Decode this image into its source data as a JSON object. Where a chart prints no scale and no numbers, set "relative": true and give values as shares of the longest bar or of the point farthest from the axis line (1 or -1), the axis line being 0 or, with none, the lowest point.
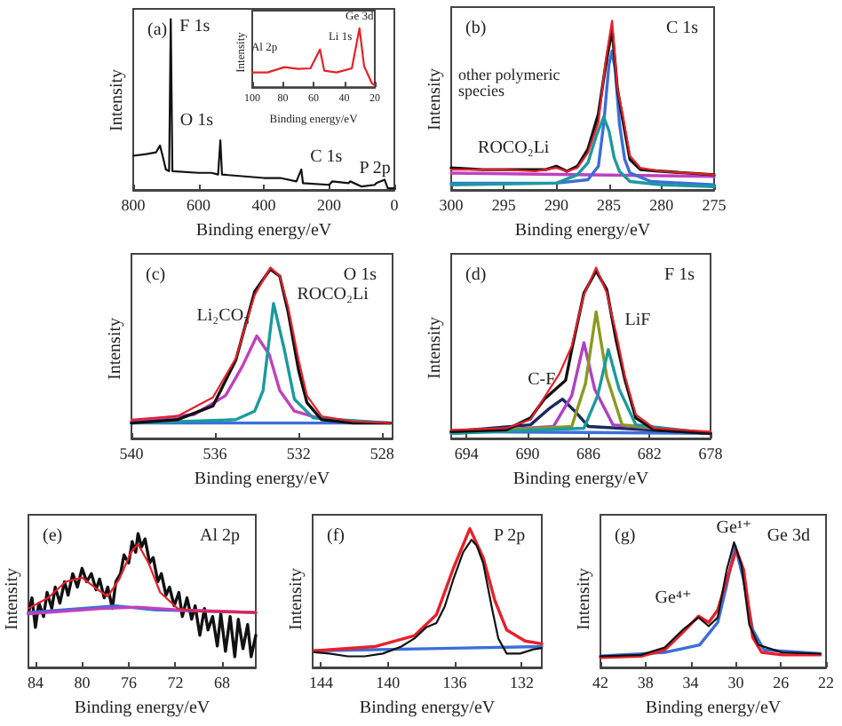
{
  "chart_data": [
    {
      "type": "line",
      "title": "(a)",
      "xlabel": "Binding energy/eV",
      "ylabel": "Intensity",
      "relative": true,
      "marker": "none",
      "xlim": [
        800,
        0
      ],
      "xticks": [
        800,
        600,
        400,
        200,
        0
      ],
      "series": [
        {
          "color": "#111111",
          "x": [
            800,
            760,
            730,
            718,
            710,
            700,
            690,
            685,
            680,
            600,
            560,
            540,
            533,
            528,
            400,
            350,
            300,
            285,
            280,
            200,
            190,
            140,
            135,
            100,
            60,
            55,
            30,
            20,
            0
          ],
          "values": [
            0.2,
            0.21,
            0.22,
            0.26,
            0.2,
            0.12,
            0.11,
            1,
            0.11,
            0.1,
            0.1,
            0.09,
            0.29,
            0.09,
            0.07,
            0.07,
            0.05,
            0.12,
            0.04,
            0.03,
            0.05,
            0.04,
            0.05,
            0.02,
            0.03,
            0.04,
            0.06,
            0.01,
            0.01
          ]
        }
      ],
      "annotations": [
        {
          "text": "F 1s",
          "x": 685,
          "y": 1
        },
        {
          "text": "O 1s",
          "x": 533,
          "y": 0.29
        },
        {
          "text": "C 1s",
          "x": 285,
          "y": 0.12
        },
        {
          "text": "P 2p",
          "x": 135,
          "y": 0.05
        }
      ]
    },
    {
      "type": "line",
      "xlabel": "Binding energy/eV",
      "ylabel": "Intensity",
      "relative": true,
      "marker": "none",
      "xlim": [
        100,
        20
      ],
      "xticks": [
        100,
        80,
        60,
        40,
        20
      ],
      "series": [
        {
          "color": "#e8202a",
          "x": [
            100,
            90,
            79,
            70,
            62,
            55.8,
            53,
            45,
            35,
            30,
            27,
            22,
            20
          ],
          "values": [
            0.25,
            0.25,
            0.34,
            0.31,
            0.32,
            0.64,
            0.28,
            0.25,
            0.32,
            1,
            0.36,
            0.07,
            0.03
          ]
        }
      ],
      "annotations": [
        {
          "text": "Al 2p",
          "x": 79,
          "y": 0.34
        },
        {
          "text": "Li 1s",
          "x": 56,
          "y": 0.64
        },
        {
          "text": "Ge 3d",
          "x": 30,
          "y": 1
        }
      ]
    },
    {
      "type": "line",
      "title": "(b)",
      "subtitle": "C 1s",
      "xlabel": "Binding energy/eV",
      "ylabel": "Intensity",
      "relative": true,
      "marker": "none",
      "xlim": [
        300,
        275
      ],
      "xticks": [
        300,
        295,
        290,
        285,
        280,
        275
      ],
      "series": [
        {
          "color": "#c040c0",
          "x": [
            300,
            275
          ],
          "values": [
            0.1,
            0.08
          ]
        },
        {
          "color": "#3a6fd8",
          "x": [
            300,
            290,
            287,
            286,
            285.5,
            285,
            284.7,
            284.4,
            284,
            283.5,
            283,
            281,
            275
          ],
          "values": [
            0.04,
            0.04,
            0.06,
            0.14,
            0.39,
            0.74,
            0.82,
            0.71,
            0.39,
            0.18,
            0.1,
            0.05,
            0.03
          ]
        },
        {
          "color": "#1a9aa0",
          "x": [
            300,
            290,
            288,
            287,
            286.2,
            285.5,
            285,
            284.5,
            284,
            283,
            280,
            275
          ],
          "values": [
            0.03,
            0.04,
            0.09,
            0.16,
            0.32,
            0.43,
            0.35,
            0.19,
            0.11,
            0.05,
            0.03,
            0.02
          ]
        },
        {
          "color": "#111111",
          "x": [
            300,
            297,
            294,
            291,
            290,
            289,
            288,
            287,
            286,
            285.3,
            284.7,
            284.2,
            283.7,
            283,
            282,
            280,
            275
          ],
          "values": [
            0.13,
            0.12,
            0.12,
            0.12,
            0.14,
            0.11,
            0.14,
            0.24,
            0.45,
            0.74,
            0.95,
            0.6,
            0.42,
            0.18,
            0.12,
            0.11,
            0.09
          ]
        },
        {
          "color": "#e8202a",
          "x": [
            300,
            295,
            292,
            290,
            289,
            288,
            287,
            286,
            285.3,
            284.7,
            284.2,
            283.7,
            283,
            282,
            280,
            275
          ],
          "values": [
            0.12,
            0.12,
            0.11,
            0.13,
            0.11,
            0.13,
            0.22,
            0.4,
            0.77,
            1,
            0.6,
            0.45,
            0.2,
            0.13,
            0.11,
            0.09
          ]
        }
      ],
      "annotations": [
        "other polymeric species",
        {
          "text": "ROCO₂Li",
          "x": 290,
          "y": 0.13
        }
      ]
    },
    {
      "type": "line",
      "title": "(c)",
      "subtitle": "O 1s",
      "xlabel": "Binding energy/eV",
      "ylabel": "Intensity",
      "relative": true,
      "marker": "none",
      "xlim": [
        540,
        527.5
      ],
      "xticks": [
        540,
        536,
        532,
        528
      ],
      "series": [
        {
          "color": "#3a6fd8",
          "x": [
            540,
            527.6
          ],
          "values": [
            0.09,
            0.09
          ]
        },
        {
          "color": "#c040c0",
          "x": [
            540,
            537,
            535.5,
            534.7,
            534,
            533.4,
            532.9,
            532.2,
            530.8,
            527.6
          ],
          "values": [
            0.1,
            0.14,
            0.25,
            0.42,
            0.6,
            0.49,
            0.28,
            0.16,
            0.11,
            0.09
          ]
        },
        {
          "color": "#1a9aa0",
          "x": [
            540,
            535,
            534.1,
            533.7,
            533.2,
            532.7,
            532.2,
            531.3,
            527.6
          ],
          "values": [
            0.09,
            0.11,
            0.16,
            0.28,
            0.79,
            0.53,
            0.23,
            0.12,
            0.09
          ]
        },
        {
          "color": "#111111",
          "x": [
            540,
            537.8,
            536.1,
            535,
            534.1,
            533.35,
            532.9,
            532.5,
            532,
            531.6,
            530.9,
            529.4,
            527.6
          ],
          "values": [
            0.09,
            0.11,
            0.19,
            0.46,
            0.86,
            0.99,
            0.95,
            0.74,
            0.4,
            0.21,
            0.11,
            0.09,
            0.09
          ]
        },
        {
          "color": "#e8202a",
          "x": [
            540,
            537.8,
            536.1,
            535,
            534.1,
            533.35,
            532.9,
            532.5,
            532,
            531.6,
            530.9,
            529.4,
            527.6
          ],
          "values": [
            0.11,
            0.13,
            0.24,
            0.47,
            0.84,
            1,
            0.95,
            0.77,
            0.46,
            0.25,
            0.13,
            0.1,
            0.09
          ]
        }
      ],
      "annotations": [
        {
          "text": "Li₂CO₃",
          "x": 534,
          "y": 0.6
        },
        {
          "text": "ROCO₂Li",
          "x": 532.5,
          "y": 0.77
        }
      ]
    },
    {
      "type": "line",
      "title": "(d)",
      "subtitle": "F 1s",
      "xlabel": "Binding energy/eV",
      "ylabel": "Intensity",
      "relative": true,
      "marker": "none",
      "xlim": [
        695,
        678
      ],
      "xticks": [
        694,
        690,
        686,
        682,
        678
      ],
      "series": [
        {
          "color": "#3a6fd8",
          "x": [
            695,
            678
          ],
          "values": [
            0.04,
            0.03
          ]
        },
        {
          "color": "#1a2a60",
          "x": [
            695,
            689.8,
            688.5,
            687.7,
            686.9,
            686,
            678
          ],
          "values": [
            0.04,
            0.08,
            0.18,
            0.23,
            0.16,
            0.07,
            0.03
          ]
        },
        {
          "color": "#b040c0",
          "x": [
            695,
            688.3,
            687.1,
            686.3,
            685.6,
            684.4,
            678
          ],
          "values": [
            0.03,
            0.07,
            0.25,
            0.56,
            0.29,
            0.08,
            0.03
          ]
        },
        {
          "color": "#8a9a20",
          "x": [
            695,
            687.1,
            686.2,
            685.5,
            684.8,
            683.8,
            678
          ],
          "values": [
            0.03,
            0.07,
            0.32,
            0.74,
            0.36,
            0.08,
            0.03
          ]
        },
        {
          "color": "#1a9aa0",
          "x": [
            695,
            686.3,
            685.4,
            684.7,
            684,
            682.9,
            678
          ],
          "values": [
            0.03,
            0.06,
            0.25,
            0.52,
            0.29,
            0.08,
            0.03
          ]
        },
        {
          "color": "#111111",
          "x": [
            695,
            691.4,
            689.8,
            688.9,
            687.5,
            687.1,
            686.3,
            685.5,
            684.8,
            684.2,
            683.6,
            682.9,
            681.7,
            678
          ],
          "values": [
            0.04,
            0.05,
            0.12,
            0.23,
            0.34,
            0.52,
            0.85,
            0.98,
            0.87,
            0.58,
            0.34,
            0.12,
            0.05,
            0.03
          ]
        },
        {
          "color": "#e8202a",
          "x": [
            695,
            691.4,
            689.8,
            688.9,
            687.9,
            687.1,
            686.3,
            685.5,
            684.8,
            684.2,
            683.6,
            682.9,
            681.7,
            678
          ],
          "values": [
            0.05,
            0.06,
            0.11,
            0.24,
            0.38,
            0.54,
            0.84,
            1,
            0.85,
            0.62,
            0.36,
            0.14,
            0.06,
            0.04
          ]
        }
      ],
      "annotations": [
        {
          "text": "C-F",
          "x": 687.7,
          "y": 0.23
        },
        {
          "text": "LiF",
          "x": 684.2,
          "y": 0.62
        }
      ]
    },
    {
      "type": "line",
      "title": "(e)",
      "subtitle": "Al 2p",
      "xlabel": "Binding energy/eV",
      "ylabel": "Intensity",
      "relative": true,
      "marker": "none",
      "xlim": [
        84.6,
        65.1
      ],
      "xticks": [
        84,
        80,
        76,
        72,
        68
      ],
      "series": [
        {
          "color": "#111111",
          "x": [
            84.6,
            84.3,
            84.0,
            83.7,
            83.3,
            83.0,
            82.6,
            82.3,
            81.9,
            81.5,
            81.2,
            80.8,
            80.4,
            80.0,
            79.6,
            79.2,
            78.8,
            78.5,
            78.1,
            77.8,
            77.4,
            77.1,
            76.7,
            76.4,
            76.0,
            75.7,
            75.4,
            75.2,
            74.9,
            74.6,
            74.2,
            73.9,
            73.5,
            73.2,
            72.8,
            72.5,
            72.1,
            71.7,
            71.4,
            71.0,
            70.6,
            70.3,
            69.9,
            69.5,
            69.2,
            68.8,
            68.4,
            68.1,
            67.7,
            67.3,
            66.9,
            66.6,
            66.2,
            65.8,
            65.5,
            65.1
          ],
          "values": [
            0.4,
            0.52,
            0.3,
            0.48,
            0.38,
            0.56,
            0.44,
            0.6,
            0.48,
            0.64,
            0.54,
            0.7,
            0.6,
            0.74,
            0.64,
            0.7,
            0.58,
            0.66,
            0.52,
            0.6,
            0.44,
            0.64,
            0.7,
            0.84,
            0.78,
            0.94,
            0.86,
            1,
            0.9,
            0.96,
            0.78,
            0.82,
            0.64,
            0.7,
            0.54,
            0.6,
            0.46,
            0.56,
            0.38,
            0.52,
            0.36,
            0.46,
            0.24,
            0.44,
            0.28,
            0.38,
            0.16,
            0.4,
            0.12,
            0.38,
            0.08,
            0.36,
            0.14,
            0.32,
            0.08,
            0.24
          ]
        },
        {
          "color": "#3a6fd8",
          "x": [
            84.6,
            77.1,
            73.8,
            65.1
          ],
          "values": [
            0.41,
            0.46,
            0.43,
            0.41
          ]
        },
        {
          "color": "#c040c0",
          "x": [
            84.6,
            78.3,
            75.3,
            71.8,
            65.1
          ],
          "values": [
            0.4,
            0.44,
            0.45,
            0.43,
            0.41
          ]
        },
        {
          "color": "#e8202a",
          "x": [
            84.6,
            82.9,
            81.4,
            80,
            78.8,
            77.8,
            76.8,
            75.8,
            75.2,
            74.3,
            73.3,
            71.8,
            70.3,
            65.1
          ],
          "values": [
            0.44,
            0.52,
            0.64,
            0.67,
            0.59,
            0.53,
            0.66,
            0.86,
            0.92,
            0.78,
            0.56,
            0.44,
            0.42,
            0.41
          ]
        }
      ]
    },
    {
      "type": "line",
      "title": "(f)",
      "subtitle": "P 2p",
      "xlabel": "Binding energy/eV",
      "ylabel": "Intensity",
      "relative": true,
      "marker": "none",
      "xlim": [
        144.5,
        130.8
      ],
      "xticks": [
        144,
        140,
        136,
        132
      ],
      "series": [
        {
          "color": "#3a6fd8",
          "x": [
            144.4,
            130.8
          ],
          "values": [
            0.12,
            0.15
          ]
        },
        {
          "color": "#e8202a",
          "x": [
            144.4,
            140.8,
            138.4,
            137.1,
            136.1,
            135.1,
            134.3,
            133.6,
            132.9,
            131.8,
            130.8
          ],
          "values": [
            0.12,
            0.15,
            0.23,
            0.38,
            0.71,
            1,
            0.79,
            0.48,
            0.27,
            0.19,
            0.17
          ]
        },
        {
          "color": "#111111",
          "x": [
            144.4,
            143.5,
            142.4,
            141.4,
            140.3,
            139.2,
            138.4,
            137.7,
            137.1,
            136.6,
            136.1,
            135.5,
            135,
            134.7,
            134.3,
            133.8,
            133.4,
            132.9,
            132.1,
            131.3,
            130.8
          ],
          "values": [
            0.11,
            0.1,
            0.08,
            0.08,
            0.1,
            0.15,
            0.21,
            0.29,
            0.32,
            0.44,
            0.63,
            0.83,
            0.92,
            0.88,
            0.75,
            0.44,
            0.21,
            0.1,
            0.1,
            0.13,
            0.14
          ]
        }
      ]
    },
    {
      "type": "line",
      "title": "(g)",
      "subtitle": "Ge 3d",
      "xlabel": "Binding energy/eV",
      "ylabel": "Intensity",
      "relative": true,
      "marker": "none",
      "xlim": [
        42,
        22
      ],
      "xticks": [
        42,
        38,
        34,
        30,
        26,
        22
      ],
      "series": [
        {
          "color": "#3a6fd8",
          "x": [
            42,
            36.3,
            33.2,
            31.6,
            30.8,
            30.05,
            29.3,
            28.5,
            27.5,
            22.5
          ],
          "values": [
            0.09,
            0.12,
            0.18,
            0.36,
            0.66,
            0.97,
            0.7,
            0.3,
            0.14,
            0.11
          ]
        },
        {
          "color": "#e8202a",
          "x": [
            42,
            38.4,
            36.3,
            34.7,
            33.3,
            32.4,
            31.6,
            30.8,
            29.95,
            29.3,
            28.5,
            27.7,
            25.9,
            22.5
          ],
          "values": [
            0.08,
            0.09,
            0.14,
            0.28,
            0.41,
            0.36,
            0.46,
            0.7,
            0.94,
            0.78,
            0.24,
            0.12,
            0.1,
            0.1
          ]
        },
        {
          "color": "#111111",
          "x": [
            42,
            38.4,
            36.3,
            34.7,
            33.3,
            32.4,
            31.6,
            30.8,
            30.15,
            29.5,
            28.8,
            28,
            25.9,
            22.5
          ],
          "values": [
            0.09,
            0.1,
            0.16,
            0.3,
            0.4,
            0.33,
            0.4,
            0.78,
            1,
            0.82,
            0.34,
            0.18,
            0.12,
            0.11
          ]
        }
      ],
      "annotations": [
        {
          "text": "Ge⁴⁺",
          "x": 33.3,
          "y": 0.4
        },
        {
          "text": "Ge¹⁺",
          "x": 30.15,
          "y": 1
        }
      ]
    }
  ]
}
